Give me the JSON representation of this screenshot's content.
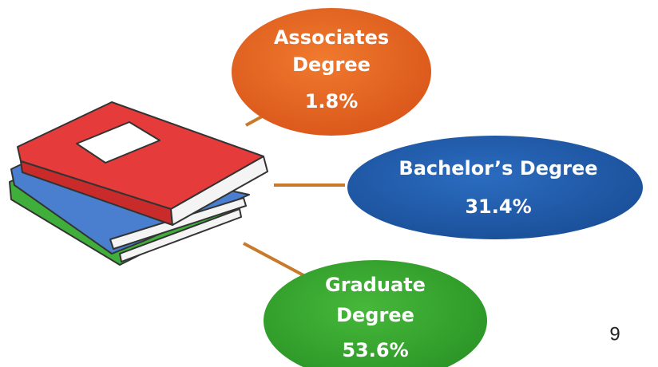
{
  "nodes": [
    {
      "label_lines": [
        "Associates",
        "Degree"
      ],
      "value": "1.8%"
    },
    {
      "label_lines": [
        "Bachelor’s Degree"
      ],
      "value": "31.4%"
    },
    {
      "label_lines": [
        "Graduate",
        "Degree"
      ],
      "value": "53.6%"
    }
  ],
  "page_number": "9"
}
